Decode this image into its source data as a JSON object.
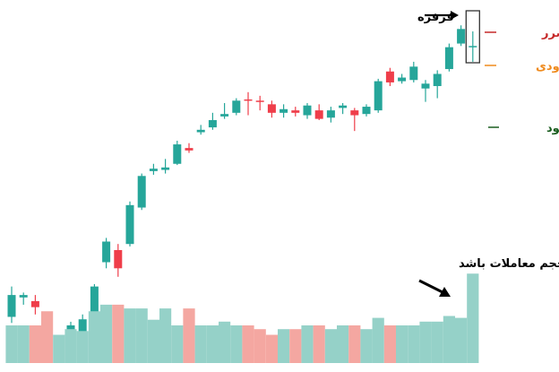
{
  "colors": {
    "bull": "#26a69a",
    "bear": "#ef3e4a",
    "vol_bull": "#95d1c8",
    "vol_bear": "#f4a7a1",
    "stop": "#c62828",
    "entry": "#ef8a1c",
    "target": "#1b5e20",
    "annotation": "#000000",
    "box": "#333333"
  },
  "annotations": {
    "doji": "فرفره",
    "stop_loss": "حد ضرر",
    "entry": "ورودی",
    "take_profit": "حد سود",
    "volume_note": "حواس‌تان به جهش حجم معاملات باشد"
  },
  "chart_data": {
    "type": "candlestick",
    "title": "",
    "xlabel": "",
    "ylabel": "",
    "grid": false,
    "ohlc": [
      {
        "o": 320,
        "h": 345,
        "l": 315,
        "c": 338
      },
      {
        "o": 336,
        "h": 340,
        "l": 330,
        "c": 338
      },
      {
        "o": 333,
        "h": 338,
        "l": 322,
        "c": 328
      },
      {
        "o": 315,
        "h": 320,
        "l": 288,
        "c": 298
      },
      {
        "o": 292,
        "h": 305,
        "l": 287,
        "c": 302
      },
      {
        "o": 300,
        "h": 316,
        "l": 297,
        "c": 313
      },
      {
        "o": 304,
        "h": 322,
        "l": 302,
        "c": 318
      },
      {
        "o": 320,
        "h": 347,
        "l": 318,
        "c": 345
      },
      {
        "o": 365,
        "h": 385,
        "l": 360,
        "c": 382
      },
      {
        "o": 375,
        "h": 380,
        "l": 353,
        "c": 360
      },
      {
        "o": 380,
        "h": 415,
        "l": 378,
        "c": 412
      },
      {
        "o": 410,
        "h": 438,
        "l": 408,
        "c": 436
      },
      {
        "o": 440,
        "h": 446,
        "l": 437,
        "c": 442
      },
      {
        "o": 441,
        "h": 450,
        "l": 438,
        "c": 443
      },
      {
        "o": 446,
        "h": 465,
        "l": 445,
        "c": 462
      },
      {
        "o": 459,
        "h": 463,
        "l": 455,
        "c": 457
      },
      {
        "o": 472,
        "h": 478,
        "l": 470,
        "c": 474
      },
      {
        "o": 476,
        "h": 488,
        "l": 474,
        "c": 482
      },
      {
        "o": 485,
        "h": 496,
        "l": 483,
        "c": 487
      },
      {
        "o": 488,
        "h": 500,
        "l": 486,
        "c": 498
      },
      {
        "o": 499,
        "h": 505,
        "l": 486,
        "c": 498
      },
      {
        "o": 498,
        "h": 502,
        "l": 490,
        "c": 497
      },
      {
        "o": 495,
        "h": 498,
        "l": 484,
        "c": 488
      },
      {
        "o": 488,
        "h": 495,
        "l": 484,
        "c": 491
      },
      {
        "o": 490,
        "h": 493,
        "l": 485,
        "c": 488
      },
      {
        "o": 486,
        "h": 496,
        "l": 483,
        "c": 494
      },
      {
        "o": 490,
        "h": 495,
        "l": 482,
        "c": 483
      },
      {
        "o": 484,
        "h": 493,
        "l": 480,
        "c": 490
      },
      {
        "o": 492,
        "h": 496,
        "l": 487,
        "c": 494
      },
      {
        "o": 490,
        "h": 492,
        "l": 473,
        "c": 486
      },
      {
        "o": 487,
        "h": 495,
        "l": 485,
        "c": 493
      },
      {
        "o": 490,
        "h": 516,
        "l": 488,
        "c": 514
      },
      {
        "o": 522,
        "h": 525,
        "l": 510,
        "c": 513
      },
      {
        "o": 514,
        "h": 520,
        "l": 512,
        "c": 517
      },
      {
        "o": 515,
        "h": 530,
        "l": 513,
        "c": 526
      },
      {
        "o": 508,
        "h": 515,
        "l": 497,
        "c": 512
      },
      {
        "o": 510,
        "h": 523,
        "l": 500,
        "c": 520
      },
      {
        "o": 524,
        "h": 545,
        "l": 522,
        "c": 542
      },
      {
        "o": 545,
        "h": 560,
        "l": 543,
        "c": 557
      },
      {
        "o": 542,
        "h": 555,
        "l": 530,
        "c": 543
      }
    ],
    "volume": [
      40,
      40,
      40,
      55,
      30,
      36,
      34,
      55,
      62,
      62,
      58,
      58,
      46,
      58,
      40,
      58,
      40,
      40,
      44,
      40,
      40,
      36,
      30,
      36,
      36,
      40,
      40,
      36,
      40,
      40,
      36,
      48,
      40,
      40,
      40,
      44,
      44,
      50,
      48,
      95
    ],
    "price_range": [
      282,
      572
    ],
    "volume_max": 100
  }
}
